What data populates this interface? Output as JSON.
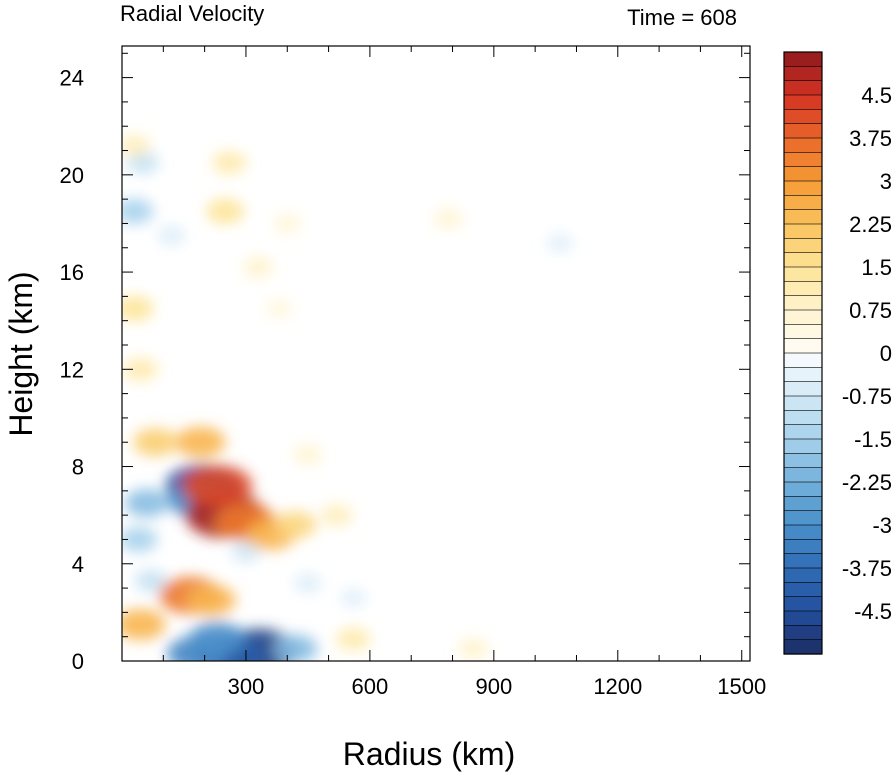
{
  "chart_data": {
    "type": "heatmap",
    "title_left": "Radial Velocity",
    "title_right": "Time = 608",
    "xlabel": "Radius (km)",
    "ylabel": "Height (km)",
    "xlim": [
      0,
      1520
    ],
    "ylim": [
      0,
      25.3
    ],
    "x_ticks": [
      300,
      600,
      900,
      1200,
      1500
    ],
    "y_ticks": [
      0,
      4,
      8,
      12,
      16,
      20,
      24
    ],
    "x_tick_labels": [
      "300",
      "600",
      "900",
      "1200",
      "1500"
    ],
    "y_tick_labels": [
      "0",
      "4",
      "8",
      "12",
      "16",
      "20",
      "24"
    ],
    "colorbar": {
      "min": -5.25,
      "max": 5.25,
      "step": 0.25,
      "label_values": [
        4.5,
        3.75,
        3,
        2.25,
        1.5,
        0.75,
        0,
        -0.75,
        -1.5,
        -2.25,
        -3,
        -3.75,
        -4.5
      ],
      "labels": [
        "4.5",
        "3.75",
        "3",
        "2.25",
        "1.5",
        "0.75",
        "0",
        "-0.75",
        "-1.5",
        "-2.25",
        "-3",
        "-3.75",
        "-4.5"
      ]
    },
    "features": [
      {
        "x": 330,
        "y": 0.4,
        "value": -4.8
      },
      {
        "x": 260,
        "y": 0.2,
        "value": -4.2
      },
      {
        "x": 180,
        "y": 0.3,
        "value": -3.2
      },
      {
        "x": 420,
        "y": 0.5,
        "value": -2.0
      },
      {
        "x": 230,
        "y": 0.9,
        "value": -3.0
      },
      {
        "x": 195,
        "y": 7.2,
        "value": -4.5
      },
      {
        "x": 180,
        "y": 6.6,
        "value": -3.0
      },
      {
        "x": 60,
        "y": 6.5,
        "value": -2.0
      },
      {
        "x": 40,
        "y": 5.0,
        "value": -1.5
      },
      {
        "x": 70,
        "y": 3.3,
        "value": -1.0
      },
      {
        "x": 300,
        "y": 4.5,
        "value": -0.8
      },
      {
        "x": 450,
        "y": 3.2,
        "value": -0.6
      },
      {
        "x": 560,
        "y": 2.6,
        "value": -0.5
      },
      {
        "x": 30,
        "y": 18.5,
        "value": -1.5
      },
      {
        "x": 50,
        "y": 20.5,
        "value": -1.0
      },
      {
        "x": 120,
        "y": 17.5,
        "value": -0.6
      },
      {
        "x": 1060,
        "y": 17.2,
        "value": -0.5
      },
      {
        "x": 250,
        "y": 6.0,
        "value": 5.0
      },
      {
        "x": 230,
        "y": 7.2,
        "value": 4.2
      },
      {
        "x": 300,
        "y": 5.7,
        "value": 3.5
      },
      {
        "x": 360,
        "y": 5.2,
        "value": 2.5
      },
      {
        "x": 420,
        "y": 5.6,
        "value": 1.8
      },
      {
        "x": 520,
        "y": 6.0,
        "value": 1.0
      },
      {
        "x": 165,
        "y": 2.7,
        "value": 3.5
      },
      {
        "x": 215,
        "y": 2.5,
        "value": 2.5
      },
      {
        "x": 45,
        "y": 1.5,
        "value": 2.5
      },
      {
        "x": 190,
        "y": 9.0,
        "value": 2.5
      },
      {
        "x": 80,
        "y": 9.0,
        "value": 2.0
      },
      {
        "x": 30,
        "y": 14.5,
        "value": 1.5
      },
      {
        "x": 45,
        "y": 12.0,
        "value": 1.2
      },
      {
        "x": 250,
        "y": 18.5,
        "value": 1.5
      },
      {
        "x": 260,
        "y": 20.5,
        "value": 1.2
      },
      {
        "x": 330,
        "y": 16.2,
        "value": 0.8
      },
      {
        "x": 400,
        "y": 18.0,
        "value": 0.6
      },
      {
        "x": 380,
        "y": 14.5,
        "value": 0.5
      },
      {
        "x": 450,
        "y": 8.5,
        "value": 0.7
      },
      {
        "x": 560,
        "y": 0.9,
        "value": 1.2
      },
      {
        "x": 30,
        "y": 21.2,
        "value": 1.0
      },
      {
        "x": 790,
        "y": 18.2,
        "value": 0.7
      },
      {
        "x": 850,
        "y": 0.5,
        "value": 0.8
      }
    ]
  }
}
